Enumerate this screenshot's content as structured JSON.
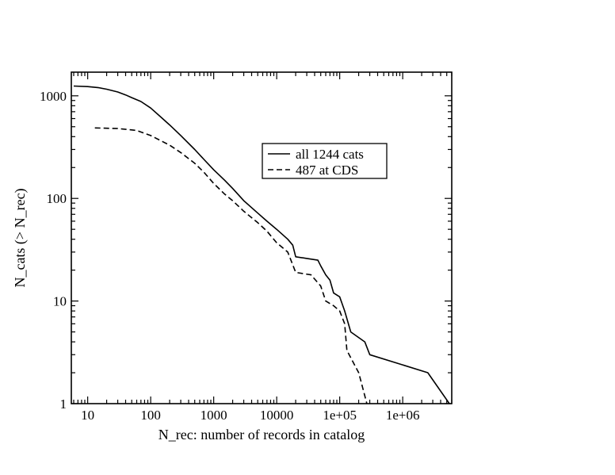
{
  "chart_data": {
    "type": "line",
    "xlabel": "N_rec: number of records in catalog",
    "ylabel": "N_cats (> N_rec)",
    "x_scale": "log",
    "y_scale": "log",
    "xlim": [
      5.5,
      6000000
    ],
    "ylim": [
      1,
      1700
    ],
    "x_ticks": [
      {
        "value": 10,
        "label": "10"
      },
      {
        "value": 100,
        "label": "100"
      },
      {
        "value": 1000,
        "label": "1000"
      },
      {
        "value": 10000,
        "label": "10000"
      },
      {
        "value": 100000,
        "label": "1e+05"
      },
      {
        "value": 1000000,
        "label": "1e+06"
      }
    ],
    "y_ticks": [
      {
        "value": 1,
        "label": "1"
      },
      {
        "value": 10,
        "label": "10"
      },
      {
        "value": 100,
        "label": "100"
      },
      {
        "value": 1000,
        "label": "1000"
      }
    ],
    "grid": false,
    "legend_position": "upper-right",
    "series": [
      {
        "name": "all 1244 cats",
        "style": "solid",
        "color": "#000000",
        "points": [
          [
            6,
            1244
          ],
          [
            10,
            1230
          ],
          [
            15,
            1200
          ],
          [
            20,
            1160
          ],
          [
            30,
            1090
          ],
          [
            40,
            1020
          ],
          [
            50,
            960
          ],
          [
            70,
            880
          ],
          [
            100,
            760
          ],
          [
            150,
            610
          ],
          [
            200,
            520
          ],
          [
            300,
            410
          ],
          [
            500,
            300
          ],
          [
            700,
            240
          ],
          [
            1000,
            190
          ],
          [
            1500,
            150
          ],
          [
            2000,
            125
          ],
          [
            3000,
            95
          ],
          [
            5000,
            72
          ],
          [
            7000,
            60
          ],
          [
            10000,
            50
          ],
          [
            15000,
            40
          ],
          [
            18000,
            35
          ],
          [
            20000,
            27
          ],
          [
            30000,
            26
          ],
          [
            45000,
            25
          ],
          [
            50000,
            22
          ],
          [
            60000,
            18
          ],
          [
            70000,
            16
          ],
          [
            80000,
            12
          ],
          [
            100000,
            11
          ],
          [
            120000,
            8
          ],
          [
            150000,
            5
          ],
          [
            250000,
            4
          ],
          [
            300000,
            3
          ],
          [
            2500000,
            2
          ],
          [
            5500000,
            1
          ]
        ]
      },
      {
        "name": "487 at CDS",
        "style": "dashed",
        "color": "#000000",
        "points": [
          [
            13,
            487
          ],
          [
            30,
            480
          ],
          [
            60,
            460
          ],
          [
            100,
            410
          ],
          [
            200,
            330
          ],
          [
            300,
            280
          ],
          [
            500,
            220
          ],
          [
            700,
            180
          ],
          [
            1000,
            140
          ],
          [
            1500,
            110
          ],
          [
            2000,
            95
          ],
          [
            3000,
            75
          ],
          [
            5000,
            58
          ],
          [
            7000,
            48
          ],
          [
            10000,
            37
          ],
          [
            15000,
            30
          ],
          [
            20000,
            19
          ],
          [
            35000,
            18
          ],
          [
            50000,
            14
          ],
          [
            60000,
            10
          ],
          [
            80000,
            9
          ],
          [
            100000,
            8
          ],
          [
            120000,
            6
          ],
          [
            130000,
            3.3
          ],
          [
            200000,
            2
          ],
          [
            270000,
            1
          ]
        ]
      }
    ]
  }
}
